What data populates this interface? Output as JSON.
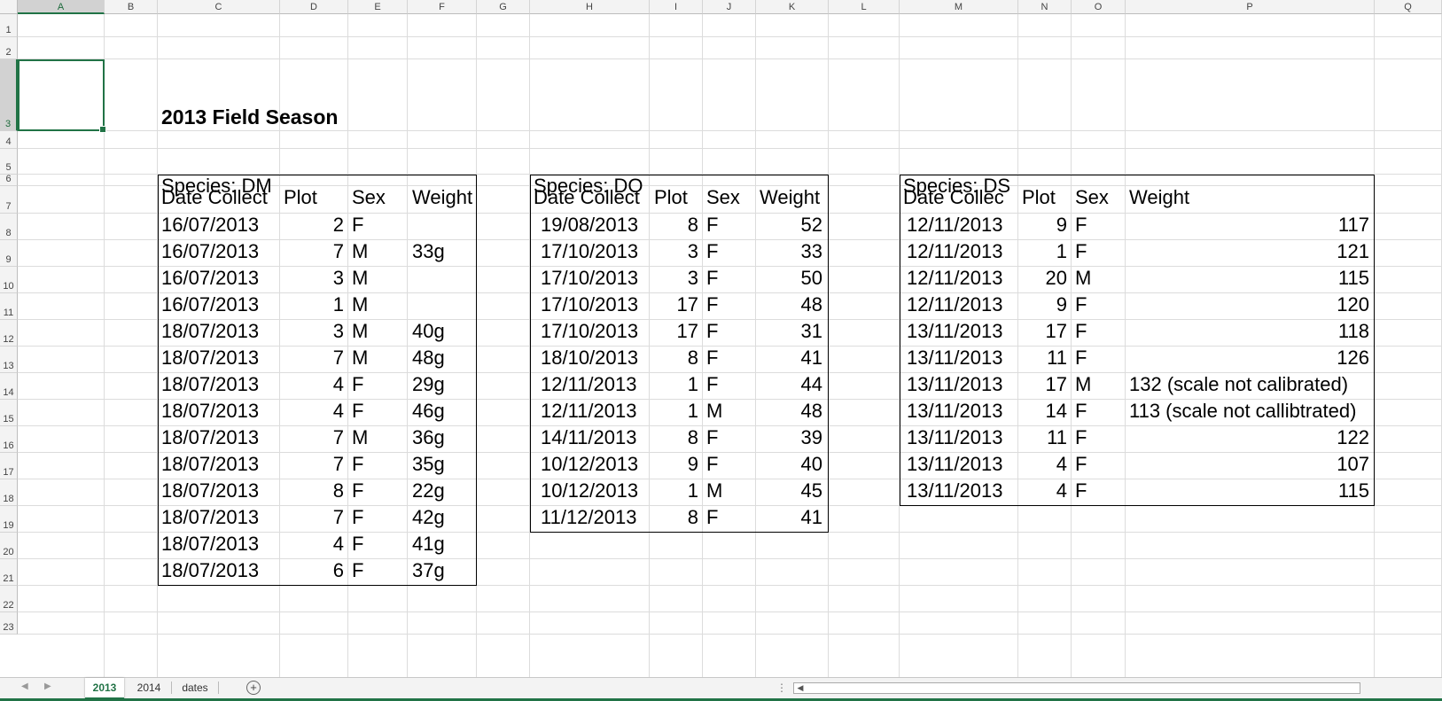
{
  "sheet": {
    "title": "2013 Field Season",
    "columns": [
      "A",
      "B",
      "C",
      "D",
      "E",
      "F",
      "G",
      "H",
      "I",
      "J",
      "K",
      "L",
      "M",
      "N",
      "O",
      "P",
      "Q"
    ],
    "selected_column": "A",
    "selected_row": 3,
    "rows": [
      1,
      2,
      3,
      4,
      5,
      6,
      7,
      8,
      9,
      10,
      11,
      12,
      13,
      14,
      15,
      16,
      17,
      18,
      19,
      20,
      21,
      22,
      23
    ]
  },
  "tables": [
    {
      "species": "Species: DM",
      "headers": [
        "Date Collect",
        "Plot",
        "Sex",
        "Weight"
      ],
      "rows": [
        [
          "16/07/2013",
          "2",
          "F",
          ""
        ],
        [
          "16/07/2013",
          "7",
          "M",
          "33g"
        ],
        [
          "16/07/2013",
          "3",
          "M",
          ""
        ],
        [
          "16/07/2013",
          "1",
          "M",
          ""
        ],
        [
          "18/07/2013",
          "3",
          "M",
          "40g"
        ],
        [
          "18/07/2013",
          "7",
          "M",
          "48g"
        ],
        [
          "18/07/2013",
          "4",
          "F",
          "29g"
        ],
        [
          "18/07/2013",
          "4",
          "F",
          "46g"
        ],
        [
          "18/07/2013",
          "7",
          "M",
          "36g"
        ],
        [
          "18/07/2013",
          "7",
          "F",
          "35g"
        ],
        [
          "18/07/2013",
          "8",
          "F",
          "22g"
        ],
        [
          "18/07/2013",
          "7",
          "F",
          "42g"
        ],
        [
          "18/07/2013",
          "4",
          "F",
          "41g"
        ],
        [
          "18/07/2013",
          "6",
          "F",
          "37g"
        ]
      ]
    },
    {
      "species": "Species: DO",
      "headers": [
        "Date Collect",
        "Plot",
        "Sex",
        "Weight"
      ],
      "rows": [
        [
          "19/08/2013",
          "8",
          "F",
          "52"
        ],
        [
          "17/10/2013",
          "3",
          "F",
          "33"
        ],
        [
          "17/10/2013",
          "3",
          "F",
          "50"
        ],
        [
          "17/10/2013",
          "17",
          "F",
          "48"
        ],
        [
          "17/10/2013",
          "17",
          "F",
          "31"
        ],
        [
          "18/10/2013",
          "8",
          "F",
          "41"
        ],
        [
          "12/11/2013",
          "1",
          "F",
          "44"
        ],
        [
          "12/11/2013",
          "1",
          "M",
          "48"
        ],
        [
          "14/11/2013",
          "8",
          "F",
          "39"
        ],
        [
          "10/12/2013",
          "9",
          "F",
          "40"
        ],
        [
          "10/12/2013",
          "1",
          "M",
          "45"
        ],
        [
          "11/12/2013",
          "8",
          "F",
          "41"
        ]
      ]
    },
    {
      "species": "Species: DS",
      "headers": [
        "Date Collec",
        "Plot",
        "Sex",
        "Weight"
      ],
      "rows": [
        [
          "12/11/2013",
          "9",
          "F",
          "117"
        ],
        [
          "12/11/2013",
          "1",
          "F",
          "121"
        ],
        [
          "12/11/2013",
          "20",
          "M",
          "115"
        ],
        [
          "12/11/2013",
          "9",
          "F",
          "120"
        ],
        [
          "13/11/2013",
          "17",
          "F",
          "118"
        ],
        [
          "13/11/2013",
          "11",
          "F",
          "126"
        ],
        [
          "13/11/2013",
          "17",
          "M",
          "132 (scale not calibrated)"
        ],
        [
          "13/11/2013",
          "14",
          "F",
          "113 (scale not callibtrated)"
        ],
        [
          "13/11/2013",
          "11",
          "F",
          "122"
        ],
        [
          "13/11/2013",
          "4",
          "F",
          "107"
        ],
        [
          "13/11/2013",
          "4",
          "F",
          "115"
        ]
      ]
    }
  ],
  "tabs": {
    "sheets": [
      "2013",
      "2014",
      "dates"
    ],
    "active": "2013",
    "nav_prev": "◀",
    "nav_next": "▶",
    "add": "+",
    "more": "⋮",
    "scroll_left": "◀"
  },
  "colors": {
    "accent": "#217346"
  }
}
